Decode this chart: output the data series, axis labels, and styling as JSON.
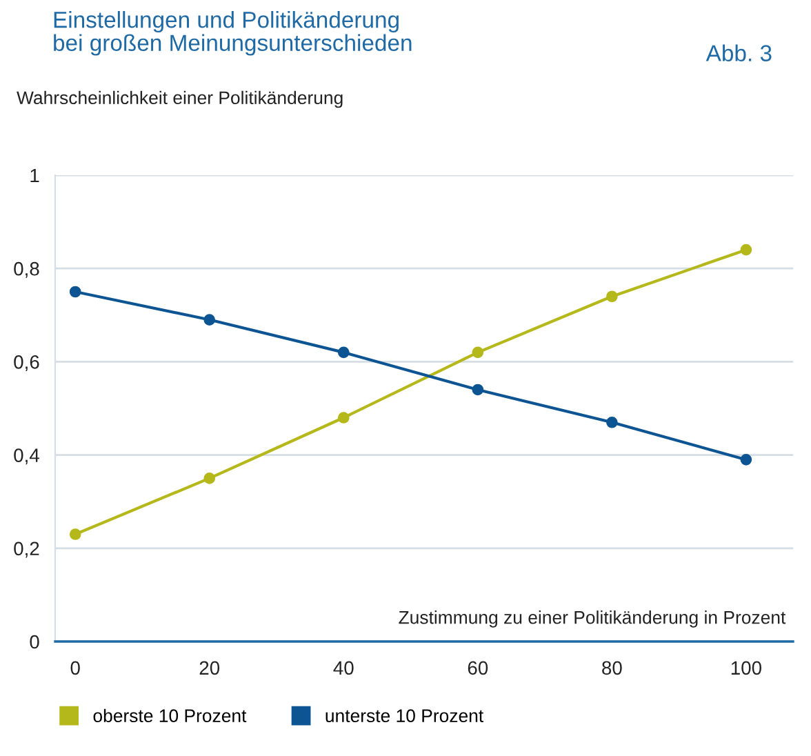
{
  "chart_data": {
    "type": "line",
    "title": "Einstellungen und Politikänderung\nbei großen Meinungsunterschieden",
    "annotations": [
      "Abb. 3"
    ],
    "ylabel": "Wahrscheinlichkeit einer Politikänderung",
    "xlabel": "Zustimmung zu einer Politikänderung in Prozent",
    "x": [
      0,
      20,
      40,
      60,
      80,
      100
    ],
    "series": [
      {
        "name": "oberste 10 Prozent",
        "color": "#b5b81a",
        "values": [
          0.23,
          0.35,
          0.48,
          0.62,
          0.74,
          0.84
        ]
      },
      {
        "name": "unterste 10 Prozent",
        "color": "#0d5493",
        "values": [
          0.75,
          0.69,
          0.62,
          0.54,
          0.47,
          0.39
        ]
      }
    ],
    "xlim": [
      -3,
      107
    ],
    "xticks": [
      0,
      20,
      40,
      60,
      80,
      100
    ],
    "ylim": [
      0,
      1
    ],
    "yticks": [
      {
        "value": 0,
        "label": "0"
      },
      {
        "value": 0.2,
        "label": "0,2"
      },
      {
        "value": 0.4,
        "label": "0,4"
      },
      {
        "value": 0.6,
        "label": "0,6"
      },
      {
        "value": 0.8,
        "label": "0,8"
      },
      {
        "value": 1,
        "label": "1"
      }
    ],
    "grid": "y",
    "legend": "bottom left",
    "marker": "circle",
    "line_style": "solid"
  }
}
